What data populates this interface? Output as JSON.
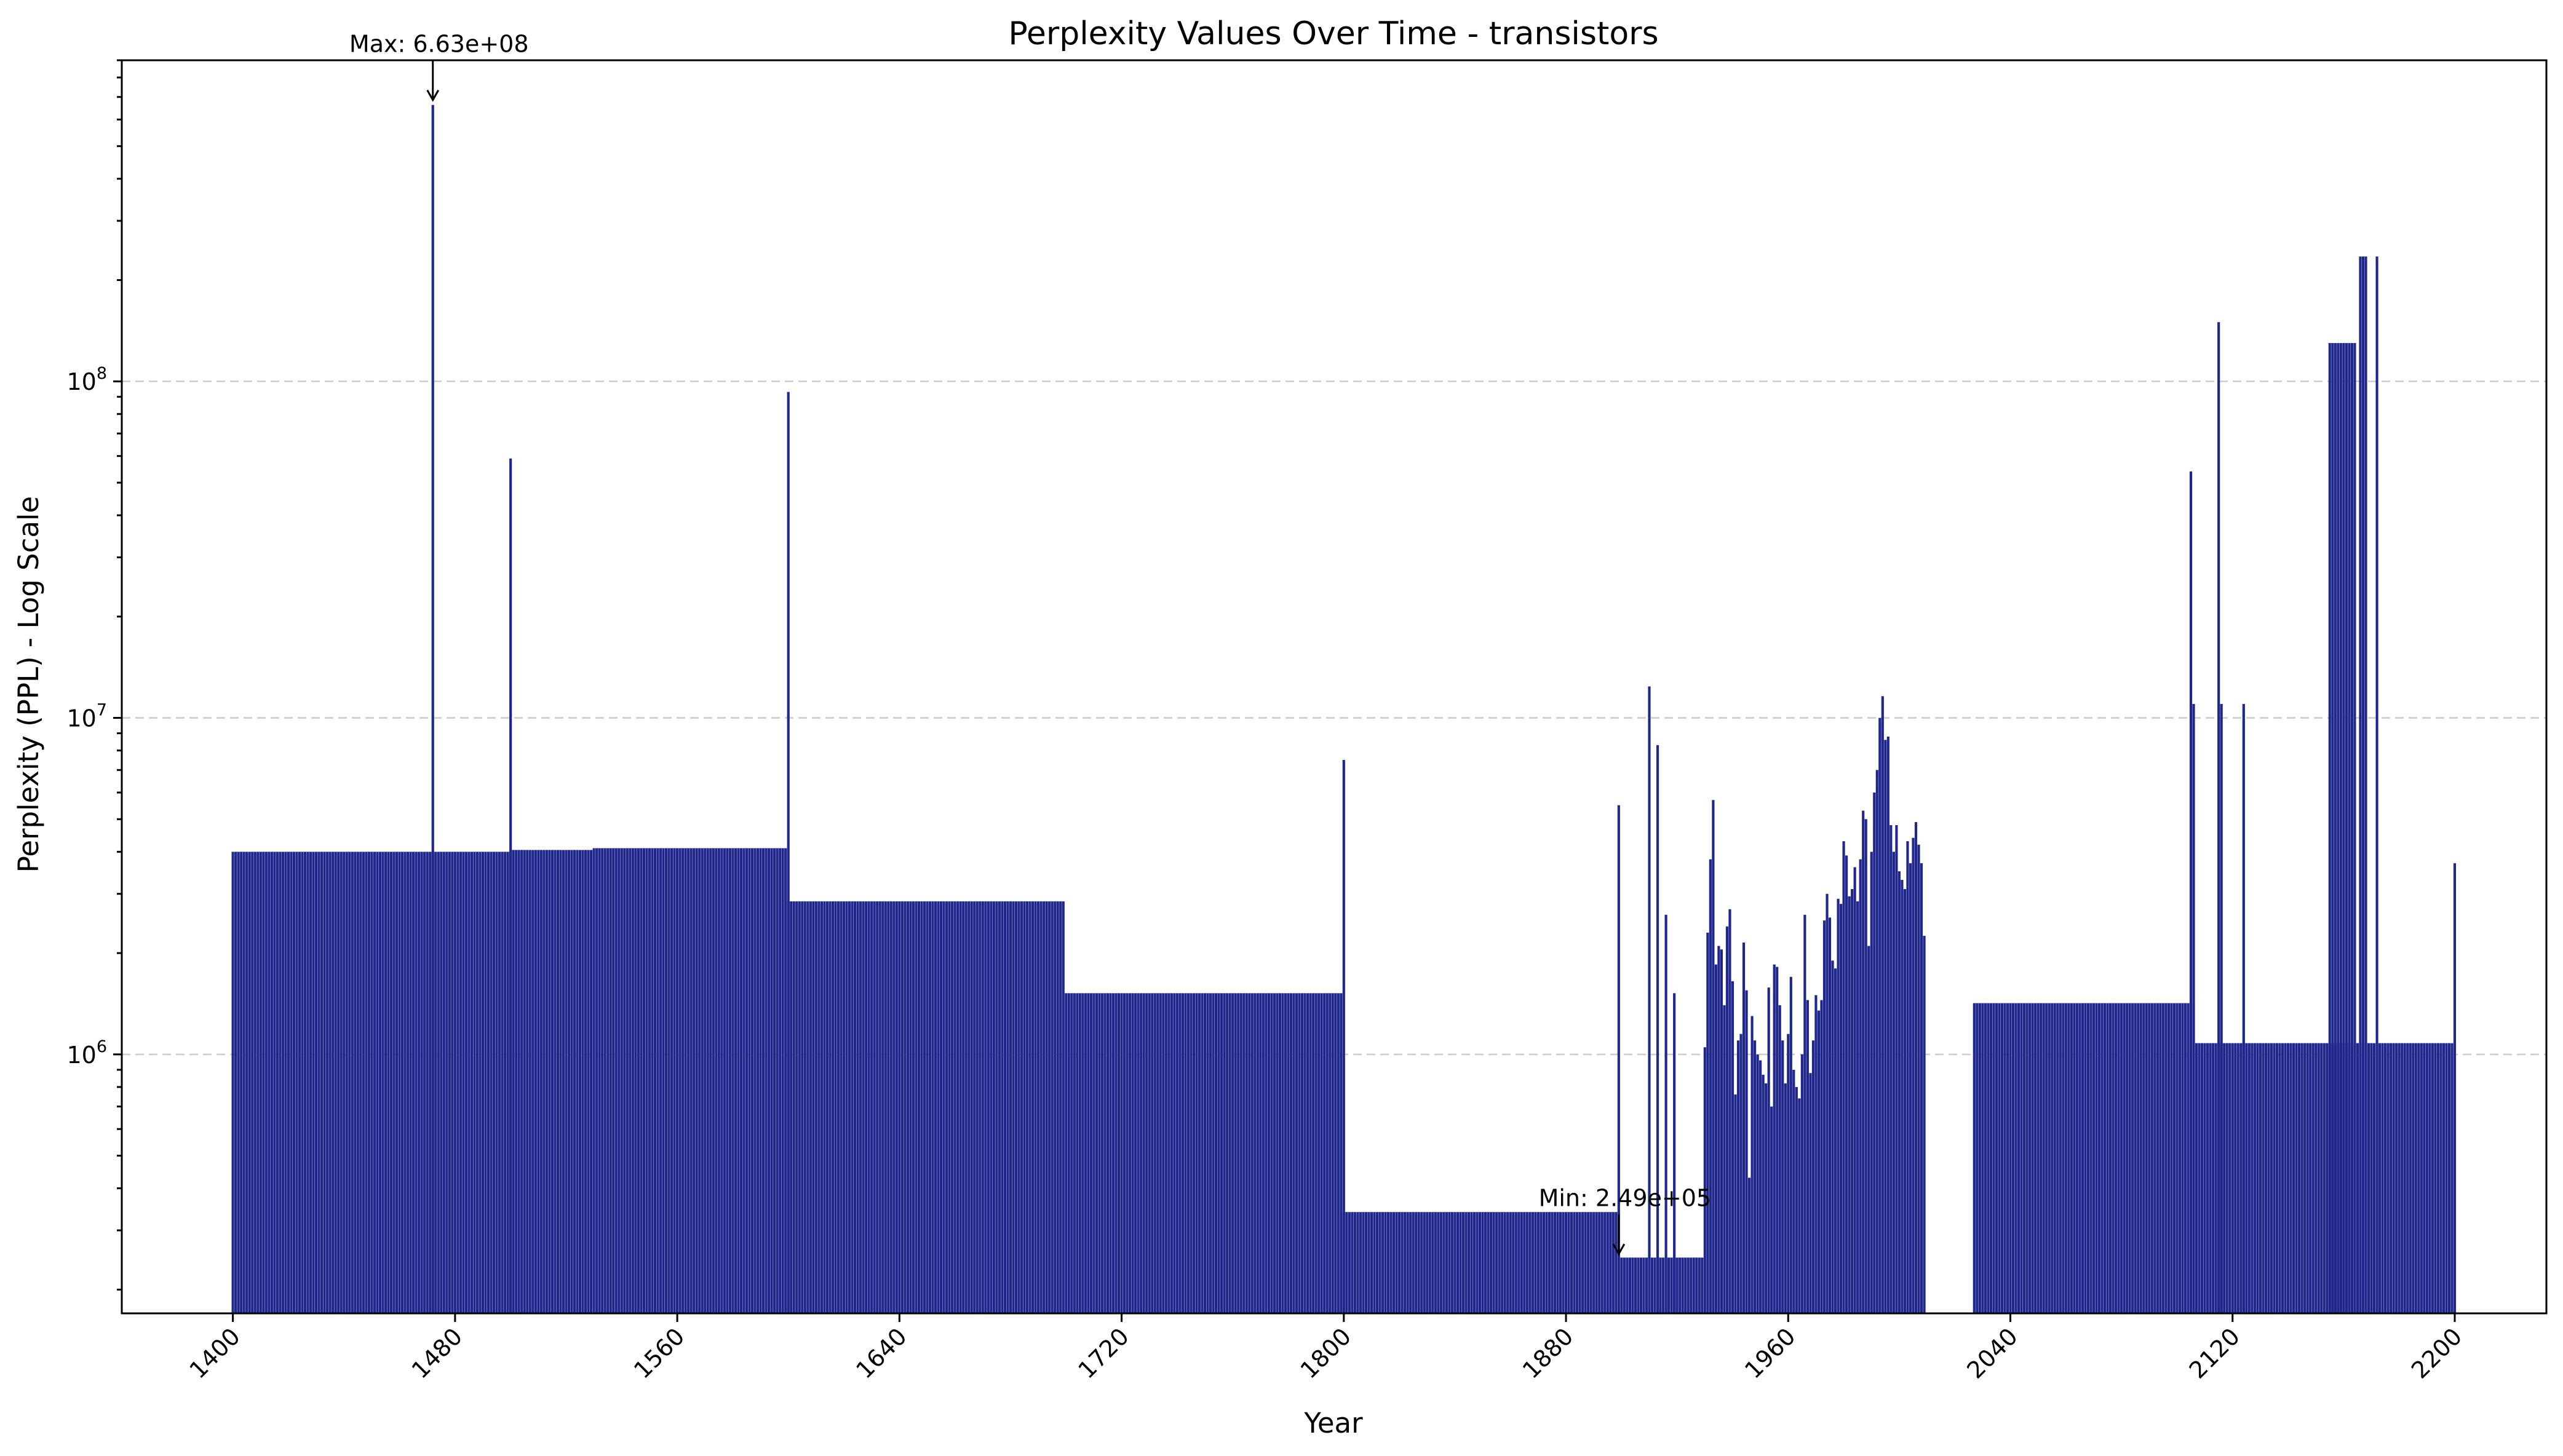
{
  "chart_data": {
    "type": "bar",
    "title": "Perplexity Values Over Time - transistors",
    "xlabel": "Year",
    "ylabel": "Perplexity (PPL) - Log Scale",
    "y_scale": "log",
    "x_range": [
      1360,
      2233
    ],
    "y_range": [
      170000,
      900000000
    ],
    "x_ticks": [
      1400,
      1480,
      1560,
      1640,
      1720,
      1800,
      1880,
      1960,
      2040,
      2120,
      2200
    ],
    "x_tick_labels": [
      "1400",
      "1480",
      "1560",
      "1640",
      "1720",
      "1800",
      "1880",
      "1960",
      "2040",
      "2120",
      "2200"
    ],
    "y_ticks": [
      1000000,
      10000000,
      100000000
    ],
    "y_tick_labels": [
      {
        "base": "10",
        "exp": "6"
      },
      {
        "base": "10",
        "exp": "7"
      },
      {
        "base": "10",
        "exp": "8"
      }
    ],
    "grid": "y",
    "bar_color": "#1f268c",
    "segments": [
      {
        "from": 1400,
        "to": 1600,
        "values": [
          [
            1400,
            4000000
          ],
          [
            1472,
            4000000
          ],
          [
            1500,
            4050000
          ],
          [
            1530,
            4100000
          ],
          [
            1560,
            4100000
          ],
          [
            1599,
            4100000
          ]
        ]
      },
      {
        "from": 1600,
        "to": 1700,
        "values": [
          [
            1600,
            2850000
          ],
          [
            1699,
            2850000
          ]
        ]
      },
      {
        "from": 1700,
        "to": 1800,
        "values": [
          [
            1700,
            1520000
          ],
          [
            1799,
            1520000
          ]
        ]
      },
      {
        "from": 1800,
        "to": 1899,
        "values": [
          [
            1800,
            340000
          ],
          [
            1898,
            340000
          ]
        ]
      },
      {
        "from": 1900,
        "to": 1930,
        "values": [
          [
            1900,
            249000
          ],
          [
            1929,
            249000
          ]
        ]
      },
      {
        "from": 2027,
        "to": 2106,
        "values": [
          [
            2027,
            1420000
          ],
          [
            2105,
            1420000
          ]
        ]
      },
      {
        "from": 2106,
        "to": 2200,
        "values": [
          [
            2106,
            1080000
          ],
          [
            2199,
            1080000
          ]
        ]
      }
    ],
    "spikes": [
      [
        1472,
        663000000
      ],
      [
        1500,
        59000000
      ],
      [
        1600,
        93000000
      ],
      [
        1800,
        7500000
      ],
      [
        1899,
        5500000
      ],
      [
        1910,
        12400000
      ],
      [
        1913,
        8300000
      ],
      [
        1916,
        2600000
      ],
      [
        1919,
        1520000
      ],
      [
        2105,
        54000000
      ],
      [
        2106,
        11000000
      ],
      [
        2115,
        150000000
      ],
      [
        2116,
        11000000
      ],
      [
        2124,
        11000000
      ],
      [
        2200,
        3700000
      ]
    ],
    "dense_series": [
      [
        1930,
        1050000
      ],
      [
        1931,
        2300000
      ],
      [
        1932,
        3800000
      ],
      [
        1933,
        5700000
      ],
      [
        1934,
        1850000
      ],
      [
        1935,
        2100000
      ],
      [
        1936,
        2050000
      ],
      [
        1937,
        1400000
      ],
      [
        1938,
        2400000
      ],
      [
        1939,
        2700000
      ],
      [
        1940,
        1650000
      ],
      [
        1941,
        760000
      ],
      [
        1942,
        1100000
      ],
      [
        1943,
        1150000
      ],
      [
        1944,
        2150000
      ],
      [
        1945,
        1550000
      ],
      [
        1946,
        430000
      ],
      [
        1947,
        1300000
      ],
      [
        1948,
        1100000
      ],
      [
        1949,
        1000000
      ],
      [
        1950,
        960000
      ],
      [
        1951,
        870000
      ],
      [
        1952,
        820000
      ],
      [
        1953,
        1580000
      ],
      [
        1954,
        700000
      ],
      [
        1955,
        1850000
      ],
      [
        1956,
        1820000
      ],
      [
        1957,
        1400000
      ],
      [
        1958,
        1100000
      ],
      [
        1959,
        820000
      ],
      [
        1960,
        1150000
      ],
      [
        1961,
        1700000
      ],
      [
        1962,
        900000
      ],
      [
        1963,
        800000
      ],
      [
        1964,
        740000
      ],
      [
        1965,
        1000000
      ],
      [
        1966,
        2600000
      ],
      [
        1967,
        1450000
      ],
      [
        1968,
        880000
      ],
      [
        1969,
        1100000
      ],
      [
        1970,
        1500000
      ],
      [
        1971,
        1350000
      ],
      [
        1972,
        1450000
      ],
      [
        1973,
        2500000
      ],
      [
        1974,
        3000000
      ],
      [
        1975,
        2550000
      ],
      [
        1976,
        1900000
      ],
      [
        1977,
        1800000
      ],
      [
        1978,
        2900000
      ],
      [
        1979,
        2800000
      ],
      [
        1980,
        4300000
      ],
      [
        1981,
        3900000
      ],
      [
        1982,
        2950000
      ],
      [
        1983,
        3100000
      ],
      [
        1984,
        3600000
      ],
      [
        1985,
        2850000
      ],
      [
        1986,
        3800000
      ],
      [
        1987,
        5300000
      ],
      [
        1988,
        5000000
      ],
      [
        1989,
        2100000
      ],
      [
        1990,
        4000000
      ],
      [
        1991,
        6000000
      ],
      [
        1992,
        7000000
      ],
      [
        1993,
        10000000
      ],
      [
        1994,
        11600000
      ],
      [
        1995,
        8600000
      ],
      [
        1996,
        8800000
      ],
      [
        1997,
        4800000
      ],
      [
        1998,
        4000000
      ],
      [
        1999,
        4800000
      ],
      [
        2000,
        3500000
      ],
      [
        2001,
        3300000
      ],
      [
        2002,
        3100000
      ],
      [
        2003,
        4300000
      ],
      [
        2004,
        3700000
      ],
      [
        2005,
        4400000
      ],
      [
        2006,
        4900000
      ],
      [
        2007,
        4200000
      ],
      [
        2008,
        3700000
      ],
      [
        2009,
        2250000
      ]
    ],
    "block_series": [
      [
        2155,
        130000000
      ],
      [
        2156,
        130000000
      ],
      [
        2157,
        130000000
      ],
      [
        2158,
        130000000
      ],
      [
        2159,
        130000000
      ],
      [
        2160,
        130000000
      ],
      [
        2161,
        130000000
      ],
      [
        2162,
        130000000
      ],
      [
        2163,
        130000000
      ],
      [
        2164,
        130000000
      ],
      [
        2165,
        1080000
      ],
      [
        2166,
        235000000
      ],
      [
        2167,
        235000000
      ],
      [
        2168,
        235000000
      ],
      [
        2170,
        1080000
      ],
      [
        2172,
        235000000
      ]
    ],
    "annotations": [
      {
        "text": "Max: 6.63e+08",
        "x": 1472,
        "y": 663000000
      },
      {
        "text": "Min: 2.49e+05",
        "x": 1899,
        "y": 249000
      }
    ]
  }
}
